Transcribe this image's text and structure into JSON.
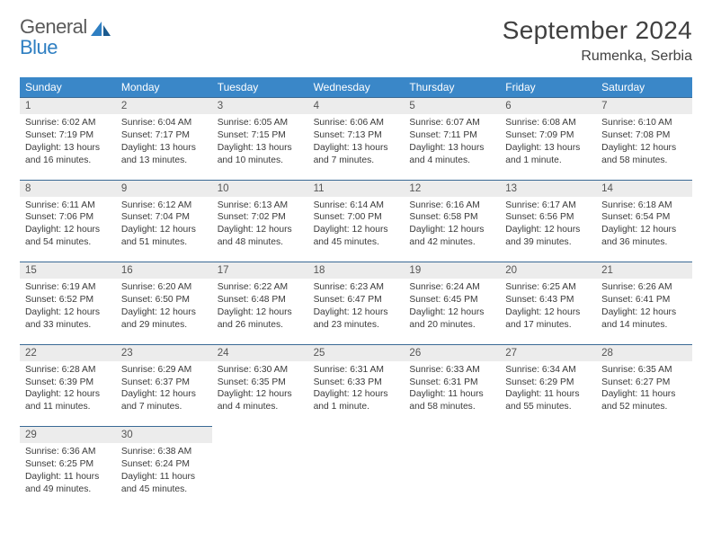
{
  "logo": {
    "line1": "General",
    "line2": "Blue"
  },
  "title": "September 2024",
  "location": "Rumenka, Serbia",
  "colors": {
    "header_bg": "#3a87c8",
    "header_text": "#ffffff",
    "daynum_bg": "#ececec",
    "daynum_text": "#555555",
    "border": "#3a6a95",
    "body_text": "#3a3a3a",
    "logo_gray": "#5a5a5a",
    "logo_blue": "#2f7fc2"
  },
  "day_names": [
    "Sunday",
    "Monday",
    "Tuesday",
    "Wednesday",
    "Thursday",
    "Friday",
    "Saturday"
  ],
  "weeks": [
    [
      {
        "n": "1",
        "sr": "Sunrise: 6:02 AM",
        "ss": "Sunset: 7:19 PM",
        "d1": "Daylight: 13 hours",
        "d2": "and 16 minutes."
      },
      {
        "n": "2",
        "sr": "Sunrise: 6:04 AM",
        "ss": "Sunset: 7:17 PM",
        "d1": "Daylight: 13 hours",
        "d2": "and 13 minutes."
      },
      {
        "n": "3",
        "sr": "Sunrise: 6:05 AM",
        "ss": "Sunset: 7:15 PM",
        "d1": "Daylight: 13 hours",
        "d2": "and 10 minutes."
      },
      {
        "n": "4",
        "sr": "Sunrise: 6:06 AM",
        "ss": "Sunset: 7:13 PM",
        "d1": "Daylight: 13 hours",
        "d2": "and 7 minutes."
      },
      {
        "n": "5",
        "sr": "Sunrise: 6:07 AM",
        "ss": "Sunset: 7:11 PM",
        "d1": "Daylight: 13 hours",
        "d2": "and 4 minutes."
      },
      {
        "n": "6",
        "sr": "Sunrise: 6:08 AM",
        "ss": "Sunset: 7:09 PM",
        "d1": "Daylight: 13 hours",
        "d2": "and 1 minute."
      },
      {
        "n": "7",
        "sr": "Sunrise: 6:10 AM",
        "ss": "Sunset: 7:08 PM",
        "d1": "Daylight: 12 hours",
        "d2": "and 58 minutes."
      }
    ],
    [
      {
        "n": "8",
        "sr": "Sunrise: 6:11 AM",
        "ss": "Sunset: 7:06 PM",
        "d1": "Daylight: 12 hours",
        "d2": "and 54 minutes."
      },
      {
        "n": "9",
        "sr": "Sunrise: 6:12 AM",
        "ss": "Sunset: 7:04 PM",
        "d1": "Daylight: 12 hours",
        "d2": "and 51 minutes."
      },
      {
        "n": "10",
        "sr": "Sunrise: 6:13 AM",
        "ss": "Sunset: 7:02 PM",
        "d1": "Daylight: 12 hours",
        "d2": "and 48 minutes."
      },
      {
        "n": "11",
        "sr": "Sunrise: 6:14 AM",
        "ss": "Sunset: 7:00 PM",
        "d1": "Daylight: 12 hours",
        "d2": "and 45 minutes."
      },
      {
        "n": "12",
        "sr": "Sunrise: 6:16 AM",
        "ss": "Sunset: 6:58 PM",
        "d1": "Daylight: 12 hours",
        "d2": "and 42 minutes."
      },
      {
        "n": "13",
        "sr": "Sunrise: 6:17 AM",
        "ss": "Sunset: 6:56 PM",
        "d1": "Daylight: 12 hours",
        "d2": "and 39 minutes."
      },
      {
        "n": "14",
        "sr": "Sunrise: 6:18 AM",
        "ss": "Sunset: 6:54 PM",
        "d1": "Daylight: 12 hours",
        "d2": "and 36 minutes."
      }
    ],
    [
      {
        "n": "15",
        "sr": "Sunrise: 6:19 AM",
        "ss": "Sunset: 6:52 PM",
        "d1": "Daylight: 12 hours",
        "d2": "and 33 minutes."
      },
      {
        "n": "16",
        "sr": "Sunrise: 6:20 AM",
        "ss": "Sunset: 6:50 PM",
        "d1": "Daylight: 12 hours",
        "d2": "and 29 minutes."
      },
      {
        "n": "17",
        "sr": "Sunrise: 6:22 AM",
        "ss": "Sunset: 6:48 PM",
        "d1": "Daylight: 12 hours",
        "d2": "and 26 minutes."
      },
      {
        "n": "18",
        "sr": "Sunrise: 6:23 AM",
        "ss": "Sunset: 6:47 PM",
        "d1": "Daylight: 12 hours",
        "d2": "and 23 minutes."
      },
      {
        "n": "19",
        "sr": "Sunrise: 6:24 AM",
        "ss": "Sunset: 6:45 PM",
        "d1": "Daylight: 12 hours",
        "d2": "and 20 minutes."
      },
      {
        "n": "20",
        "sr": "Sunrise: 6:25 AM",
        "ss": "Sunset: 6:43 PM",
        "d1": "Daylight: 12 hours",
        "d2": "and 17 minutes."
      },
      {
        "n": "21",
        "sr": "Sunrise: 6:26 AM",
        "ss": "Sunset: 6:41 PM",
        "d1": "Daylight: 12 hours",
        "d2": "and 14 minutes."
      }
    ],
    [
      {
        "n": "22",
        "sr": "Sunrise: 6:28 AM",
        "ss": "Sunset: 6:39 PM",
        "d1": "Daylight: 12 hours",
        "d2": "and 11 minutes."
      },
      {
        "n": "23",
        "sr": "Sunrise: 6:29 AM",
        "ss": "Sunset: 6:37 PM",
        "d1": "Daylight: 12 hours",
        "d2": "and 7 minutes."
      },
      {
        "n": "24",
        "sr": "Sunrise: 6:30 AM",
        "ss": "Sunset: 6:35 PM",
        "d1": "Daylight: 12 hours",
        "d2": "and 4 minutes."
      },
      {
        "n": "25",
        "sr": "Sunrise: 6:31 AM",
        "ss": "Sunset: 6:33 PM",
        "d1": "Daylight: 12 hours",
        "d2": "and 1 minute."
      },
      {
        "n": "26",
        "sr": "Sunrise: 6:33 AM",
        "ss": "Sunset: 6:31 PM",
        "d1": "Daylight: 11 hours",
        "d2": "and 58 minutes."
      },
      {
        "n": "27",
        "sr": "Sunrise: 6:34 AM",
        "ss": "Sunset: 6:29 PM",
        "d1": "Daylight: 11 hours",
        "d2": "and 55 minutes."
      },
      {
        "n": "28",
        "sr": "Sunrise: 6:35 AM",
        "ss": "Sunset: 6:27 PM",
        "d1": "Daylight: 11 hours",
        "d2": "and 52 minutes."
      }
    ],
    [
      {
        "n": "29",
        "sr": "Sunrise: 6:36 AM",
        "ss": "Sunset: 6:25 PM",
        "d1": "Daylight: 11 hours",
        "d2": "and 49 minutes."
      },
      {
        "n": "30",
        "sr": "Sunrise: 6:38 AM",
        "ss": "Sunset: 6:24 PM",
        "d1": "Daylight: 11 hours",
        "d2": "and 45 minutes."
      },
      null,
      null,
      null,
      null,
      null
    ]
  ]
}
